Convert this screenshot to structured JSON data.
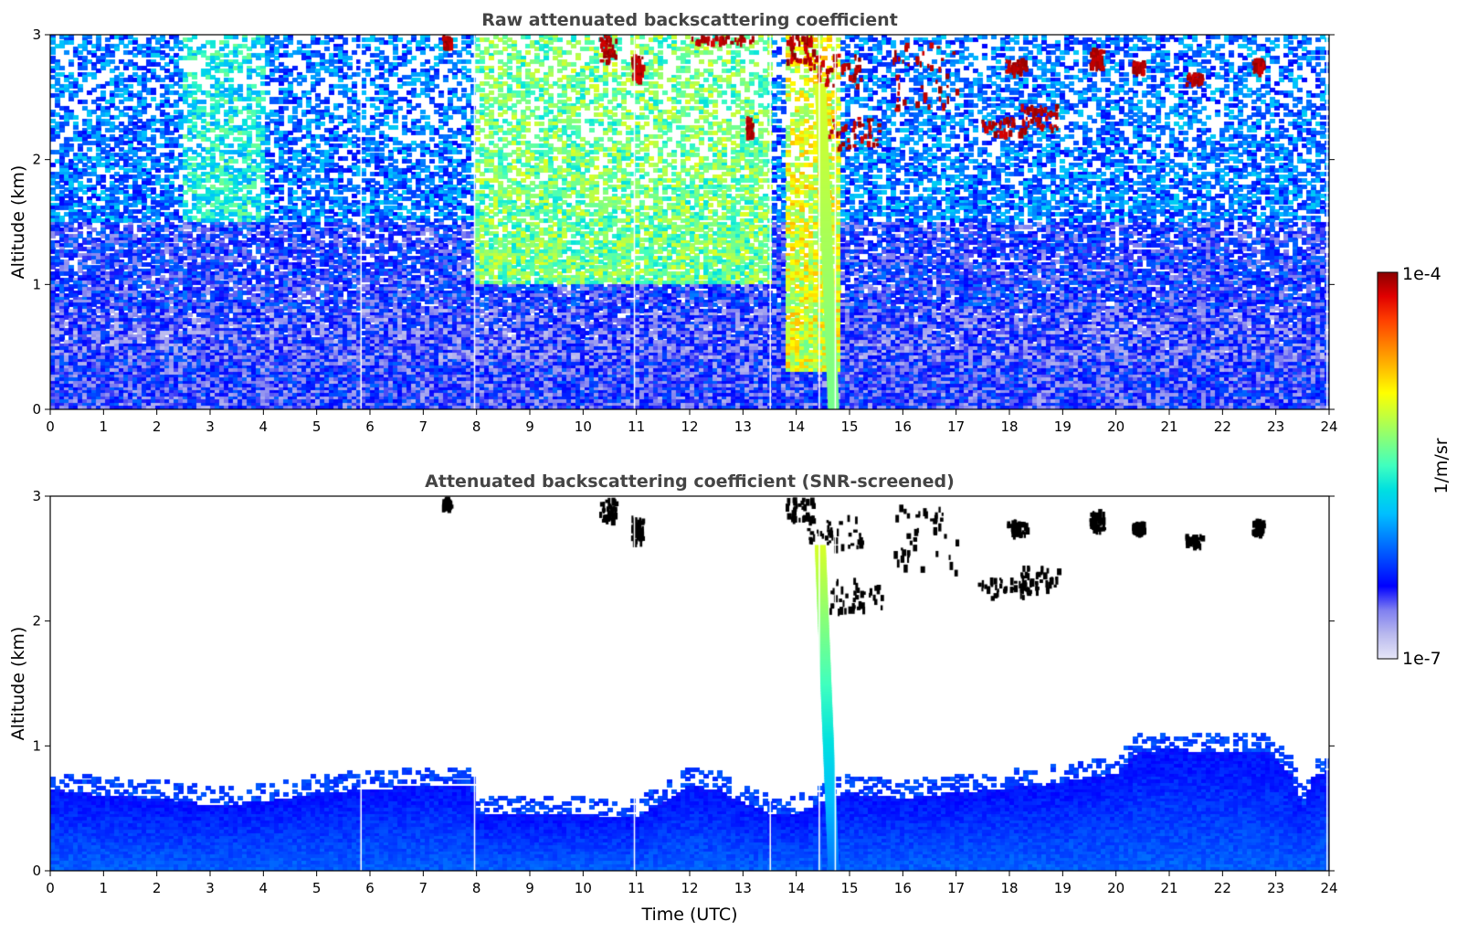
{
  "chart_data": [
    {
      "type": "heatmap",
      "title": "Raw attenuated backscattering coefficient",
      "xlabel": "",
      "ylabel": "Altitude (km)",
      "xlim": [
        0,
        24
      ],
      "ylim": [
        0,
        3
      ],
      "x_ticks": [
        "0",
        "1",
        "2",
        "3",
        "4",
        "5",
        "6",
        "7",
        "8",
        "9",
        "10",
        "11",
        "12",
        "13",
        "14",
        "15",
        "16",
        "17",
        "18",
        "19",
        "20",
        "21",
        "22",
        "23",
        "24"
      ],
      "y_ticks": [
        "0",
        "1",
        "2",
        "3"
      ],
      "color_scale": "log",
      "value_range": [
        1e-07,
        0.0001
      ],
      "background_layer": [
        {
          "max_alt_km": 0.4,
          "level": 0.18
        },
        {
          "max_alt_km": 0.8,
          "level": 0.16
        },
        {
          "max_alt_km": 1.5,
          "level": 0.2
        },
        {
          "max_alt_km": 3.0,
          "level": 0.3
        }
      ],
      "enhanced_regions": [
        {
          "time_range": [
            8.0,
            13.5
          ],
          "alt_range": [
            1.0,
            3.0
          ],
          "level": 0.55
        },
        {
          "time_range": [
            13.8,
            14.8
          ],
          "alt_range": [
            0.3,
            3.0
          ],
          "level": 0.65
        },
        {
          "time_range": [
            2.5,
            4.0
          ],
          "alt_range": [
            1.5,
            3.0
          ],
          "level": 0.45
        }
      ],
      "clouds": [
        {
          "t0": 7.35,
          "t1": 7.5,
          "z0": 2.92,
          "z1": 3.0
        },
        {
          "t0": 10.3,
          "t1": 10.6,
          "z0": 2.8,
          "z1": 3.0
        },
        {
          "t0": 10.9,
          "t1": 11.1,
          "z0": 2.65,
          "z1": 2.85
        },
        {
          "t0": 12.0,
          "t1": 13.2,
          "z0": 2.95,
          "z1": 3.0
        },
        {
          "t0": 13.05,
          "t1": 13.15,
          "z0": 2.2,
          "z1": 2.35
        },
        {
          "t0": 13.8,
          "t1": 14.3,
          "z0": 2.8,
          "z1": 3.0
        },
        {
          "t0": 14.2,
          "t1": 15.2,
          "z0": 2.6,
          "z1": 2.85
        },
        {
          "t0": 14.6,
          "t1": 15.6,
          "z0": 2.1,
          "z1": 2.35
        },
        {
          "t0": 15.8,
          "t1": 17.0,
          "z0": 2.4,
          "z1": 2.95
        },
        {
          "t0": 17.4,
          "t1": 18.4,
          "z0": 2.2,
          "z1": 2.35
        },
        {
          "t0": 18.2,
          "t1": 18.9,
          "z0": 2.25,
          "z1": 2.45
        },
        {
          "t0": 17.9,
          "t1": 18.3,
          "z0": 2.7,
          "z1": 2.82
        },
        {
          "t0": 19.5,
          "t1": 19.75,
          "z0": 2.75,
          "z1": 2.9
        },
        {
          "t0": 20.3,
          "t1": 20.5,
          "z0": 2.72,
          "z1": 2.8
        },
        {
          "t0": 21.3,
          "t1": 21.6,
          "z0": 2.62,
          "z1": 2.7
        },
        {
          "t0": 22.55,
          "t1": 22.75,
          "z0": 2.72,
          "z1": 2.82
        }
      ],
      "plume": {
        "time": 14.7,
        "alt_range": [
          0.0,
          2.6
        ],
        "level": 0.55
      },
      "missing_data_gaps": [
        5.82,
        7.95,
        10.95,
        13.5,
        14.42,
        14.72,
        23.95
      ]
    },
    {
      "type": "heatmap",
      "title": "Attenuated backscattering coefficient (SNR-screened)",
      "xlabel": "Time (UTC)",
      "ylabel": "Altitude (km)",
      "xlim": [
        0,
        24
      ],
      "ylim": [
        0,
        3
      ],
      "x_ticks": [
        "0",
        "1",
        "2",
        "3",
        "4",
        "5",
        "6",
        "7",
        "8",
        "9",
        "10",
        "11",
        "12",
        "13",
        "14",
        "15",
        "16",
        "17",
        "18",
        "19",
        "20",
        "21",
        "22",
        "23",
        "24"
      ],
      "y_ticks": [
        "0",
        "1",
        "2",
        "3"
      ],
      "color_scale": "log",
      "value_range": [
        1e-07,
        0.0001
      ],
      "boundary_layer_top_km": {
        "time": [
          0,
          1,
          2,
          3,
          4,
          5,
          6,
          7,
          7.9,
          8.0,
          9,
          10,
          11,
          11.5,
          12,
          12.5,
          13,
          13.5,
          14,
          14.5,
          15,
          16,
          17,
          18,
          19,
          20,
          20.4,
          21,
          22,
          22.8,
          23,
          23.3,
          23.5,
          23.7,
          24
        ],
        "altitude": [
          0.65,
          0.6,
          0.58,
          0.52,
          0.55,
          0.62,
          0.65,
          0.68,
          0.68,
          0.46,
          0.44,
          0.44,
          0.43,
          0.55,
          0.68,
          0.65,
          0.55,
          0.46,
          0.45,
          0.55,
          0.62,
          0.58,
          0.62,
          0.66,
          0.7,
          0.78,
          0.95,
          0.97,
          0.95,
          0.95,
          0.9,
          0.75,
          0.5,
          0.75,
          0.8
        ]
      },
      "clouds": [
        {
          "t0": 7.35,
          "t1": 7.5,
          "z0": 2.92,
          "z1": 3.0
        },
        {
          "t0": 10.3,
          "t1": 10.6,
          "z0": 2.8,
          "z1": 3.0
        },
        {
          "t0": 10.9,
          "t1": 11.1,
          "z0": 2.65,
          "z1": 2.85
        },
        {
          "t0": 13.8,
          "t1": 14.3,
          "z0": 2.8,
          "z1": 3.0
        },
        {
          "t0": 14.2,
          "t1": 15.2,
          "z0": 2.6,
          "z1": 2.85
        },
        {
          "t0": 14.6,
          "t1": 15.6,
          "z0": 2.1,
          "z1": 2.35
        },
        {
          "t0": 15.8,
          "t1": 17.0,
          "z0": 2.4,
          "z1": 2.95
        },
        {
          "t0": 17.4,
          "t1": 18.4,
          "z0": 2.2,
          "z1": 2.35
        },
        {
          "t0": 18.2,
          "t1": 18.9,
          "z0": 2.25,
          "z1": 2.45
        },
        {
          "t0": 17.9,
          "t1": 18.3,
          "z0": 2.7,
          "z1": 2.82
        },
        {
          "t0": 19.5,
          "t1": 19.75,
          "z0": 2.75,
          "z1": 2.9
        },
        {
          "t0": 20.3,
          "t1": 20.5,
          "z0": 2.72,
          "z1": 2.8
        },
        {
          "t0": 21.3,
          "t1": 21.6,
          "z0": 2.62,
          "z1": 2.7
        },
        {
          "t0": 22.55,
          "t1": 22.75,
          "z0": 2.72,
          "z1": 2.82
        }
      ],
      "plume": {
        "time": 14.7,
        "alt_range": [
          0.0,
          2.6
        ],
        "level": 0.55
      },
      "missing_data_gaps": [
        5.82,
        7.95,
        10.95,
        13.5,
        14.42,
        14.72,
        23.95
      ]
    }
  ],
  "colorbar": {
    "label": "1/m/sr",
    "max_label": "1e-4",
    "min_label": "1e-7",
    "colors": [
      "#e6e6f7",
      "#b9b9ee",
      "#8080f0",
      "#0000ff",
      "#0040ff",
      "#0080ff",
      "#00bfff",
      "#00e0e0",
      "#40ffbf",
      "#80ff80",
      "#bfff40",
      "#ffff00",
      "#ffbf00",
      "#ff8000",
      "#ff4000",
      "#e00000",
      "#8b0000"
    ],
    "cloud_color_screened": "#000000"
  }
}
